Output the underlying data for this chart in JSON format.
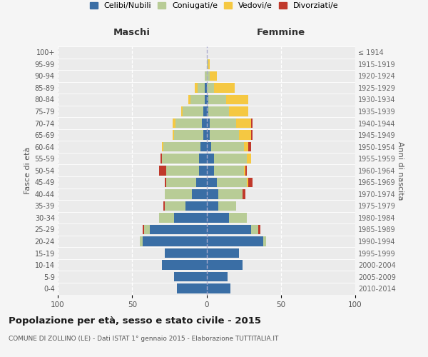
{
  "age_groups": [
    "0-4",
    "5-9",
    "10-14",
    "15-19",
    "20-24",
    "25-29",
    "30-34",
    "35-39",
    "40-44",
    "45-49",
    "50-54",
    "55-59",
    "60-64",
    "65-69",
    "70-74",
    "75-79",
    "80-84",
    "85-89",
    "90-94",
    "95-99",
    "100+"
  ],
  "birth_years": [
    "2010-2014",
    "2005-2009",
    "2000-2004",
    "1995-1999",
    "1990-1994",
    "1985-1989",
    "1980-1984",
    "1975-1979",
    "1970-1974",
    "1965-1969",
    "1960-1964",
    "1955-1959",
    "1950-1954",
    "1945-1949",
    "1940-1944",
    "1935-1939",
    "1930-1934",
    "1925-1929",
    "1920-1924",
    "1915-1919",
    "≤ 1914"
  ],
  "male": {
    "celibi": [
      20,
      22,
      30,
      28,
      43,
      38,
      22,
      14,
      10,
      7,
      5,
      5,
      4,
      2,
      3,
      2,
      1,
      1,
      0,
      0,
      0
    ],
    "coniugati": [
      0,
      0,
      0,
      0,
      2,
      4,
      10,
      14,
      18,
      20,
      22,
      25,
      25,
      20,
      18,
      14,
      10,
      5,
      1,
      0,
      0
    ],
    "vedovi": [
      0,
      0,
      0,
      0,
      0,
      0,
      0,
      0,
      0,
      0,
      0,
      0,
      1,
      1,
      2,
      1,
      1,
      2,
      0,
      0,
      0
    ],
    "divorziati": [
      0,
      0,
      0,
      0,
      0,
      1,
      0,
      1,
      0,
      1,
      5,
      1,
      0,
      0,
      0,
      0,
      0,
      0,
      0,
      0,
      0
    ]
  },
  "female": {
    "nubili": [
      16,
      14,
      24,
      22,
      38,
      30,
      15,
      8,
      8,
      7,
      5,
      5,
      3,
      2,
      2,
      1,
      1,
      0,
      0,
      0,
      0
    ],
    "coniugate": [
      0,
      0,
      0,
      0,
      2,
      5,
      12,
      12,
      16,
      20,
      20,
      22,
      22,
      20,
      18,
      14,
      12,
      5,
      2,
      1,
      0
    ],
    "vedove": [
      0,
      0,
      0,
      0,
      0,
      0,
      0,
      0,
      0,
      1,
      1,
      3,
      3,
      8,
      10,
      13,
      15,
      14,
      5,
      1,
      0
    ],
    "divorziate": [
      0,
      0,
      0,
      0,
      0,
      1,
      0,
      0,
      2,
      3,
      1,
      0,
      2,
      1,
      1,
      0,
      0,
      0,
      0,
      0,
      0
    ]
  },
  "colors": {
    "celibi_nubili": "#3a6ea5",
    "coniugati": "#b8cc96",
    "vedovi": "#f5c842",
    "divorziati": "#c0392b"
  },
  "xlim": 100,
  "title": "Popolazione per età, sesso e stato civile - 2015",
  "subtitle": "COMUNE DI ZOLLINO (LE) - Dati ISTAT 1° gennaio 2015 - Elaborazione TUTTITALIA.IT",
  "xlabel_left": "Maschi",
  "xlabel_right": "Femmine",
  "ylabel_left": "Fasce di età",
  "ylabel_right": "Anni di nascita",
  "background_color": "#f5f5f5",
  "plot_bg": "#ebebeb"
}
